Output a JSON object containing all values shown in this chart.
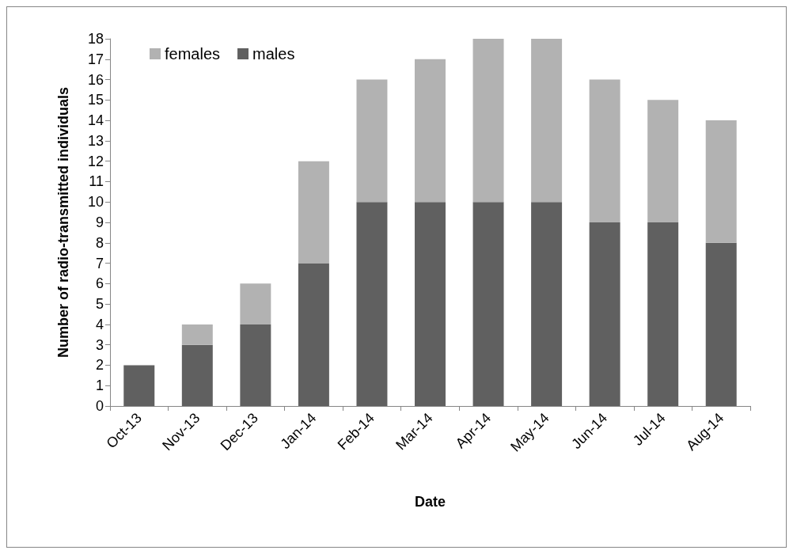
{
  "chart_data": {
    "type": "bar",
    "xlabel": "Date",
    "ylabel": "Number of radio-transmitted individuals",
    "categories": [
      "Oct-13",
      "Nov-13",
      "Dec-13",
      "Jan-14",
      "Feb-14",
      "Mar-14",
      "Apr-14",
      "May-14",
      "Jun-14",
      "Jul-14",
      "Aug-14"
    ],
    "stacked": true,
    "series": [
      {
        "name": "males",
        "color": "#606060",
        "values": [
          2,
          3,
          4,
          7,
          10,
          10,
          10,
          10,
          9,
          9,
          8
        ]
      },
      {
        "name": "females",
        "color": "#b2b2b2",
        "values": [
          0,
          1,
          2,
          5,
          6,
          7,
          8,
          8,
          7,
          6,
          6
        ]
      }
    ],
    "ylim": [
      0,
      18
    ],
    "yticks": [
      0,
      1,
      2,
      3,
      4,
      5,
      6,
      7,
      8,
      9,
      10,
      11,
      12,
      13,
      14,
      15,
      16,
      17,
      18
    ],
    "grid": false,
    "legend": "top left"
  }
}
